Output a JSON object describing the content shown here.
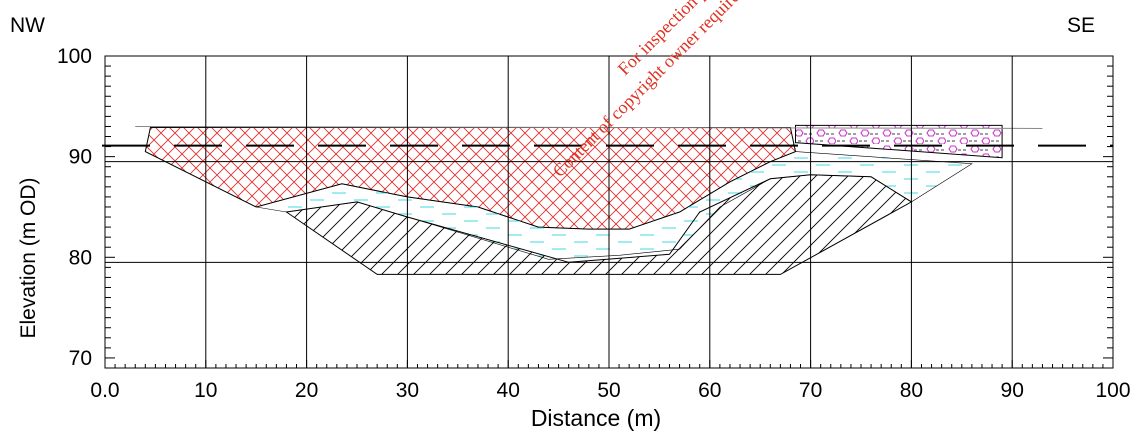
{
  "labels": {
    "left_direction": "NW",
    "right_direction": "SE",
    "x_axis_label": "Distance (m)",
    "y_axis_label": "Elevation (m OD)"
  },
  "watermark": {
    "line1": "For inspection purposes only.",
    "line2": "Content of copyright owner required for any other use."
  },
  "axes": {
    "x_ticks": [
      "0.0",
      "10",
      "20",
      "30",
      "40",
      "50",
      "60",
      "70",
      "80",
      "90",
      "100"
    ],
    "y_ticks": [
      "70",
      "80",
      "90",
      "100"
    ],
    "xlim": [
      0,
      100
    ],
    "ylim": [
      69,
      100
    ]
  },
  "colors": {
    "topsoil_hatch": "#e03030",
    "water_dash": "#40d8e0",
    "bedrock_hatch": "#000000",
    "symbol_fill": "#cc33cc",
    "watermark": "#e03020"
  },
  "section_data": {
    "ground_surface": [
      [
        3,
        93.0
      ],
      [
        93,
        92.8
      ]
    ],
    "water_table_elevation": 91.1,
    "reference_lines_elevation": [
      89.5,
      79.5
    ],
    "layers": [
      {
        "id": "made-ground-red",
        "pattern": "crosshatch",
        "points": [
          [
            4.5,
            92.9
          ],
          [
            68,
            92.9
          ],
          [
            68.5,
            90.5
          ],
          [
            66,
            89.5
          ],
          [
            62,
            87.5
          ],
          [
            57,
            84.5
          ],
          [
            52,
            82.8
          ],
          [
            48,
            82.8
          ],
          [
            43,
            83.0
          ],
          [
            37,
            85.0
          ],
          [
            30,
            86.0
          ],
          [
            23.5,
            87.3
          ],
          [
            15,
            85.0
          ],
          [
            4,
            90.5
          ]
        ]
      },
      {
        "id": "fill-pink",
        "pattern": "hex-symbols",
        "points": [
          [
            68.5,
            93.1
          ],
          [
            89,
            93.1
          ],
          [
            89,
            89.9
          ],
          [
            68.5,
            91.4
          ]
        ]
      },
      {
        "id": "saturated-cyan",
        "pattern": "dashes",
        "points": [
          [
            15,
            85.0
          ],
          [
            23.5,
            87.3
          ],
          [
            30,
            86.0
          ],
          [
            37,
            85.0
          ],
          [
            43,
            83.0
          ],
          [
            48,
            82.8
          ],
          [
            52,
            82.8
          ],
          [
            57,
            84.5
          ],
          [
            62,
            87.5
          ],
          [
            66,
            89.5
          ],
          [
            68.5,
            90.5
          ],
          [
            86,
            89.3
          ],
          [
            80,
            85.5
          ],
          [
            76,
            88.0
          ],
          [
            70,
            88.2
          ],
          [
            66,
            87.8
          ],
          [
            61,
            85.0
          ],
          [
            57,
            80.8
          ],
          [
            51,
            80.2
          ],
          [
            44,
            79.8
          ],
          [
            30,
            84.0
          ],
          [
            25,
            85.5
          ],
          [
            18,
            84.5
          ]
        ]
      },
      {
        "id": "natural-black",
        "pattern": "diagonal",
        "points": [
          [
            18,
            84.5
          ],
          [
            25,
            85.5
          ],
          [
            30,
            84.0
          ],
          [
            46,
            79.5
          ],
          [
            56,
            80.3
          ],
          [
            59,
            84.5
          ],
          [
            66,
            87.8
          ],
          [
            70,
            88.2
          ],
          [
            76,
            88.0
          ],
          [
            80,
            85.5
          ],
          [
            67,
            78.3
          ],
          [
            27,
            78.3
          ]
        ]
      }
    ]
  }
}
